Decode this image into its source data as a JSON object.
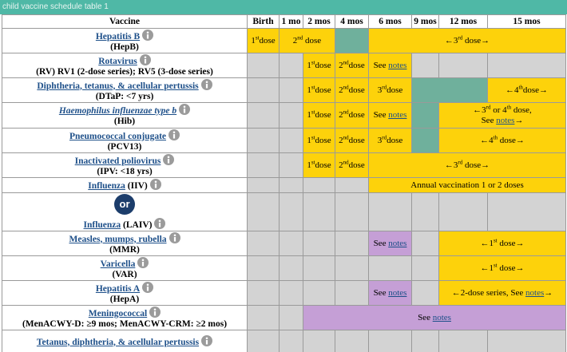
{
  "caption": "child vaccine schedule table 1",
  "table": {
    "header": [
      "Vaccine",
      "Birth",
      "1 mo",
      "2 mos",
      "4 mos",
      "6 mos",
      "9 mos",
      "12 mos",
      "15 mos"
    ],
    "rows": [
      {
        "vaccine": {
          "name": "Hepatitis B",
          "line2": "(HepB)"
        },
        "cells": [
          {
            "fill": "yellow",
            "parts": [
              {
                "text": "1"
              },
              {
                "sup": "st"
              },
              {
                "text": "dose"
              }
            ]
          },
          {
            "fill": "yellow",
            "span": 2,
            "parts": [
              {
                "text": "2"
              },
              {
                "sup": "nd"
              },
              {
                "text": " dose"
              }
            ]
          },
          {
            "fill": "green"
          },
          {
            "fill": "yellow",
            "span": 4,
            "parts": [
              {
                "text": "←3"
              },
              {
                "sup": "rd"
              },
              {
                "text": " dose→"
              }
            ]
          }
        ]
      },
      {
        "vaccine": {
          "name": "Rotavirus",
          "line2": "(RV) RV1 (2-dose series); RV5 (3-dose series)"
        },
        "cells": [
          {
            "fill": "gray"
          },
          {
            "fill": "gray"
          },
          {
            "fill": "yellow",
            "parts": [
              {
                "text": "1"
              },
              {
                "sup": "st"
              },
              {
                "text": "dose"
              }
            ]
          },
          {
            "fill": "yellow",
            "parts": [
              {
                "text": "2"
              },
              {
                "sup": "nd"
              },
              {
                "text": "dose"
              }
            ]
          },
          {
            "fill": "yellow",
            "parts": [
              {
                "text": "See "
              },
              {
                "link": "notes"
              }
            ]
          },
          {
            "fill": "gray"
          },
          {
            "fill": "gray"
          },
          {
            "fill": "gray"
          }
        ]
      },
      {
        "vaccine": {
          "name": "Diphtheria, tetanus, & acellular pertussis",
          "line2": "(DTaP: <7 yrs)"
        },
        "cells": [
          {
            "fill": "gray"
          },
          {
            "fill": "gray"
          },
          {
            "fill": "yellow",
            "parts": [
              {
                "text": "1"
              },
              {
                "sup": "st"
              },
              {
                "text": "dose"
              }
            ]
          },
          {
            "fill": "yellow",
            "parts": [
              {
                "text": "2"
              },
              {
                "sup": "nd"
              },
              {
                "text": "dose"
              }
            ]
          },
          {
            "fill": "yellow",
            "parts": [
              {
                "text": "3"
              },
              {
                "sup": "rd"
              },
              {
                "text": "dose"
              }
            ]
          },
          {
            "fill": "green",
            "span": 2
          },
          {
            "fill": "yellow",
            "parts": [
              {
                "text": "←4"
              },
              {
                "sup": "th"
              },
              {
                "text": "dose→"
              }
            ]
          }
        ]
      },
      {
        "vaccine": {
          "name": "Haemophilus influenzae type b",
          "italic": true,
          "line2": "(Hib)"
        },
        "cells": [
          {
            "fill": "gray"
          },
          {
            "fill": "gray"
          },
          {
            "fill": "yellow",
            "parts": [
              {
                "text": "1"
              },
              {
                "sup": "st"
              },
              {
                "text": "dose"
              }
            ]
          },
          {
            "fill": "yellow",
            "parts": [
              {
                "text": "2"
              },
              {
                "sup": "nd"
              },
              {
                "text": "dose"
              }
            ]
          },
          {
            "fill": "yellow",
            "parts": [
              {
                "text": "See "
              },
              {
                "link": "notes"
              }
            ]
          },
          {
            "fill": "green"
          },
          {
            "fill": "yellow",
            "span": 2,
            "parts": [
              {
                "text": "←3"
              },
              {
                "sup": "rd"
              },
              {
                "text": " or 4"
              },
              {
                "sup": "th"
              },
              {
                "text": " dose,"
              },
              {
                "br": true
              },
              {
                "text": "See "
              },
              {
                "link": "notes"
              },
              {
                "text": "→"
              }
            ]
          }
        ]
      },
      {
        "vaccine": {
          "name": "Pneumococcal conjugate",
          "line2": "(PCV13)"
        },
        "cells": [
          {
            "fill": "gray"
          },
          {
            "fill": "gray"
          },
          {
            "fill": "yellow",
            "parts": [
              {
                "text": "1"
              },
              {
                "sup": "st"
              },
              {
                "text": "dose"
              }
            ]
          },
          {
            "fill": "yellow",
            "parts": [
              {
                "text": "2"
              },
              {
                "sup": "nd"
              },
              {
                "text": "dose"
              }
            ]
          },
          {
            "fill": "yellow",
            "parts": [
              {
                "text": "3"
              },
              {
                "sup": "rd"
              },
              {
                "text": "dose"
              }
            ]
          },
          {
            "fill": "green"
          },
          {
            "fill": "yellow",
            "span": 2,
            "parts": [
              {
                "text": "←4"
              },
              {
                "sup": "th"
              },
              {
                "text": " dose→"
              }
            ]
          }
        ]
      },
      {
        "vaccine": {
          "name": "Inactivated poliovirus",
          "line2": "(IPV: <18 yrs)"
        },
        "cells": [
          {
            "fill": "gray"
          },
          {
            "fill": "gray"
          },
          {
            "fill": "yellow",
            "parts": [
              {
                "text": "1"
              },
              {
                "sup": "st"
              },
              {
                "text": "dose"
              }
            ]
          },
          {
            "fill": "yellow",
            "parts": [
              {
                "text": "2"
              },
              {
                "sup": "nd"
              },
              {
                "text": "dose"
              }
            ]
          },
          {
            "fill": "yellow",
            "span": 4,
            "parts": [
              {
                "text": "←3"
              },
              {
                "sup": "rd"
              },
              {
                "text": " dose→"
              }
            ]
          }
        ]
      },
      {
        "vaccine": {
          "name": "Influenza",
          "after": " (IIV)"
        },
        "cells": [
          {
            "fill": "gray"
          },
          {
            "fill": "gray"
          },
          {
            "fill": "gray"
          },
          {
            "fill": "gray"
          },
          {
            "fill": "yellow",
            "span": 4,
            "parts": [
              {
                "text": "Annual vaccination 1 or 2 doses"
              }
            ]
          }
        ]
      },
      {
        "vaccine": {
          "or": "or",
          "name": "Influenza",
          "after": " (LAIV)"
        },
        "cells": [
          {
            "fill": "gray"
          },
          {
            "fill": "gray"
          },
          {
            "fill": "gray"
          },
          {
            "fill": "gray"
          },
          {
            "fill": "gray"
          },
          {
            "fill": "gray"
          },
          {
            "fill": "gray"
          },
          {
            "fill": "gray"
          }
        ]
      },
      {
        "vaccine": {
          "name": "Measles, mumps, rubella",
          "line2": "(MMR)"
        },
        "cells": [
          {
            "fill": "gray"
          },
          {
            "fill": "gray"
          },
          {
            "fill": "gray"
          },
          {
            "fill": "gray"
          },
          {
            "fill": "purple",
            "parts": [
              {
                "text": "See "
              },
              {
                "link": "notes"
              }
            ]
          },
          {
            "fill": "gray"
          },
          {
            "fill": "yellow",
            "span": 2,
            "parts": [
              {
                "text": "←1"
              },
              {
                "sup": "st"
              },
              {
                "text": " dose→"
              }
            ]
          }
        ]
      },
      {
        "vaccine": {
          "name": "Varicella",
          "line2": "(VAR)"
        },
        "cells": [
          {
            "fill": "gray"
          },
          {
            "fill": "gray"
          },
          {
            "fill": "gray"
          },
          {
            "fill": "gray"
          },
          {
            "fill": "gray"
          },
          {
            "fill": "gray"
          },
          {
            "fill": "yellow",
            "span": 2,
            "parts": [
              {
                "text": "←1"
              },
              {
                "sup": "st"
              },
              {
                "text": " dose→"
              }
            ]
          }
        ]
      },
      {
        "vaccine": {
          "name": "Hepatitis A",
          "line2": "(HepA)"
        },
        "cells": [
          {
            "fill": "gray"
          },
          {
            "fill": "gray"
          },
          {
            "fill": "gray"
          },
          {
            "fill": "gray"
          },
          {
            "fill": "purple",
            "parts": [
              {
                "text": "See "
              },
              {
                "link": "notes"
              }
            ]
          },
          {
            "fill": "gray"
          },
          {
            "fill": "yellow",
            "span": 2,
            "parts": [
              {
                "text": "←2-dose series, See "
              },
              {
                "link": "notes"
              },
              {
                "text": "→"
              }
            ]
          }
        ]
      },
      {
        "vaccine": {
          "name": "Meningococcal",
          "line2": "(MenACWY-D: ≥9 mos; MenACWY-CRM: ≥2 mos)"
        },
        "cells": [
          {
            "fill": "gray"
          },
          {
            "fill": "gray"
          },
          {
            "fill": "purple",
            "span": 6,
            "parts": [
              {
                "text": "See "
              },
              {
                "link": "notes"
              }
            ]
          }
        ]
      },
      {
        "vaccine": {
          "name": "Tetanus, diphtheria, & acellular pertussis"
        },
        "cells": [
          {
            "fill": "gray"
          },
          {
            "fill": "gray"
          },
          {
            "fill": "gray"
          },
          {
            "fill": "gray"
          },
          {
            "fill": "gray"
          },
          {
            "fill": "gray"
          },
          {
            "fill": "gray"
          },
          {
            "fill": "gray"
          }
        ]
      }
    ]
  }
}
